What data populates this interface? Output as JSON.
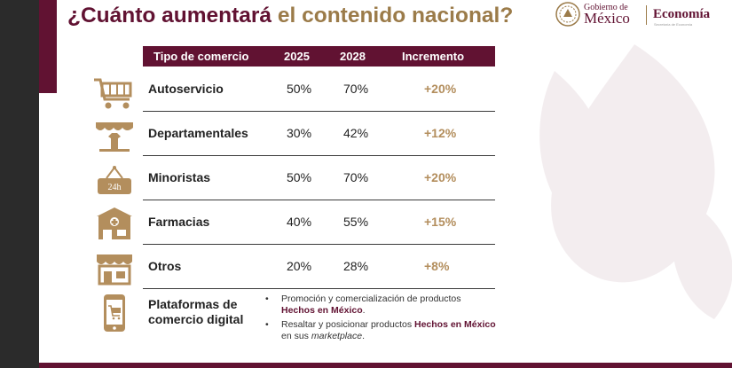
{
  "title": {
    "part1": "¿Cuánto aumentará ",
    "part2": "el contenido nacional?"
  },
  "logo": {
    "line1": "Gobierno de",
    "line2": "México",
    "brand": "Economía",
    "brand_sub": "Secretaría de Economía"
  },
  "table": {
    "headers": [
      "Tipo de comercio",
      "2025",
      "2028",
      "Incremento"
    ],
    "rows": [
      {
        "name": "Autoservicio",
        "y2025": "50%",
        "y2028": "70%",
        "increment": "+20%",
        "icon": "shopping-cart-icon"
      },
      {
        "name": "Departamentales",
        "y2025": "30%",
        "y2028": "42%",
        "increment": "+12%",
        "icon": "department-store-icon"
      },
      {
        "name": "Minoristas",
        "y2025": "50%",
        "y2028": "70%",
        "increment": "+20%",
        "icon": "24h-sign-icon"
      },
      {
        "name": "Farmacias",
        "y2025": "40%",
        "y2028": "55%",
        "increment": "+15%",
        "icon": "pharmacy-icon"
      },
      {
        "name": "Otros",
        "y2025": "20%",
        "y2028": "28%",
        "increment": "+8%",
        "icon": "shop-icon"
      }
    ],
    "digital": {
      "name_line1": "Plataformas de",
      "name_line2": "comercio digital",
      "icon": "mobile-shopping-icon",
      "bullet1": {
        "text": "Promoción y comercialización de productos",
        "highlight": "Hechos en México",
        "end": "."
      },
      "bullet2": {
        "text": "Resaltar y posicionar productos ",
        "highlight": "Hechos en México",
        "middle": " en sus ",
        "italic": "marketplace",
        "end": "."
      }
    }
  },
  "colors": {
    "brand": "#611232",
    "gold": "#b38e5d"
  }
}
